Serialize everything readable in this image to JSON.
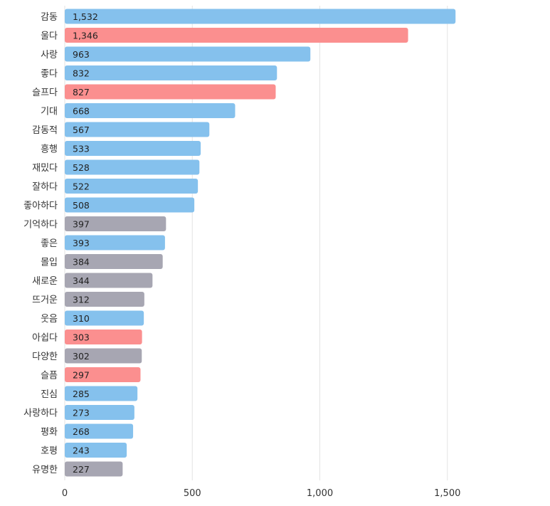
{
  "chart_data": {
    "type": "bar",
    "orientation": "horizontal",
    "categories": [
      "감동",
      "울다",
      "사랑",
      "좋다",
      "슬프다",
      "기대",
      "감동적",
      "흥행",
      "재밌다",
      "잘하다",
      "좋아하다",
      "기억하다",
      "좋은",
      "몰입",
      "새로운",
      "뜨거운",
      "웃음",
      "아쉽다",
      "다양한",
      "슬픔",
      "진심",
      "사랑하다",
      "평화",
      "호평",
      "유명한"
    ],
    "values": [
      1532,
      1346,
      963,
      832,
      827,
      668,
      567,
      533,
      528,
      522,
      508,
      397,
      393,
      384,
      344,
      312,
      310,
      303,
      302,
      297,
      285,
      273,
      268,
      243,
      227
    ],
    "value_labels": [
      "1,532",
      "1,346",
      "963",
      "832",
      "827",
      "668",
      "567",
      "533",
      "528",
      "522",
      "508",
      "397",
      "393",
      "384",
      "344",
      "312",
      "310",
      "303",
      "302",
      "297",
      "285",
      "273",
      "268",
      "243",
      "227"
    ],
    "bar_groups": [
      "positive",
      "negative",
      "positive",
      "positive",
      "negative",
      "positive",
      "positive",
      "positive",
      "positive",
      "positive",
      "positive",
      "neutral",
      "positive",
      "neutral",
      "neutral",
      "neutral",
      "positive",
      "negative",
      "neutral",
      "negative",
      "positive",
      "positive",
      "positive",
      "positive",
      "neutral"
    ],
    "group_colors": {
      "positive": "#85c1ed",
      "negative": "#fb8f8f",
      "neutral": "#a7a6b2"
    },
    "x_ticks": [
      0,
      500,
      1000,
      1500
    ],
    "x_tick_labels": [
      "0",
      "500",
      "1,000",
      "1,500"
    ],
    "xlim": [
      0,
      1860
    ],
    "grid": "vertical",
    "title": "",
    "xlabel": "",
    "ylabel": ""
  }
}
